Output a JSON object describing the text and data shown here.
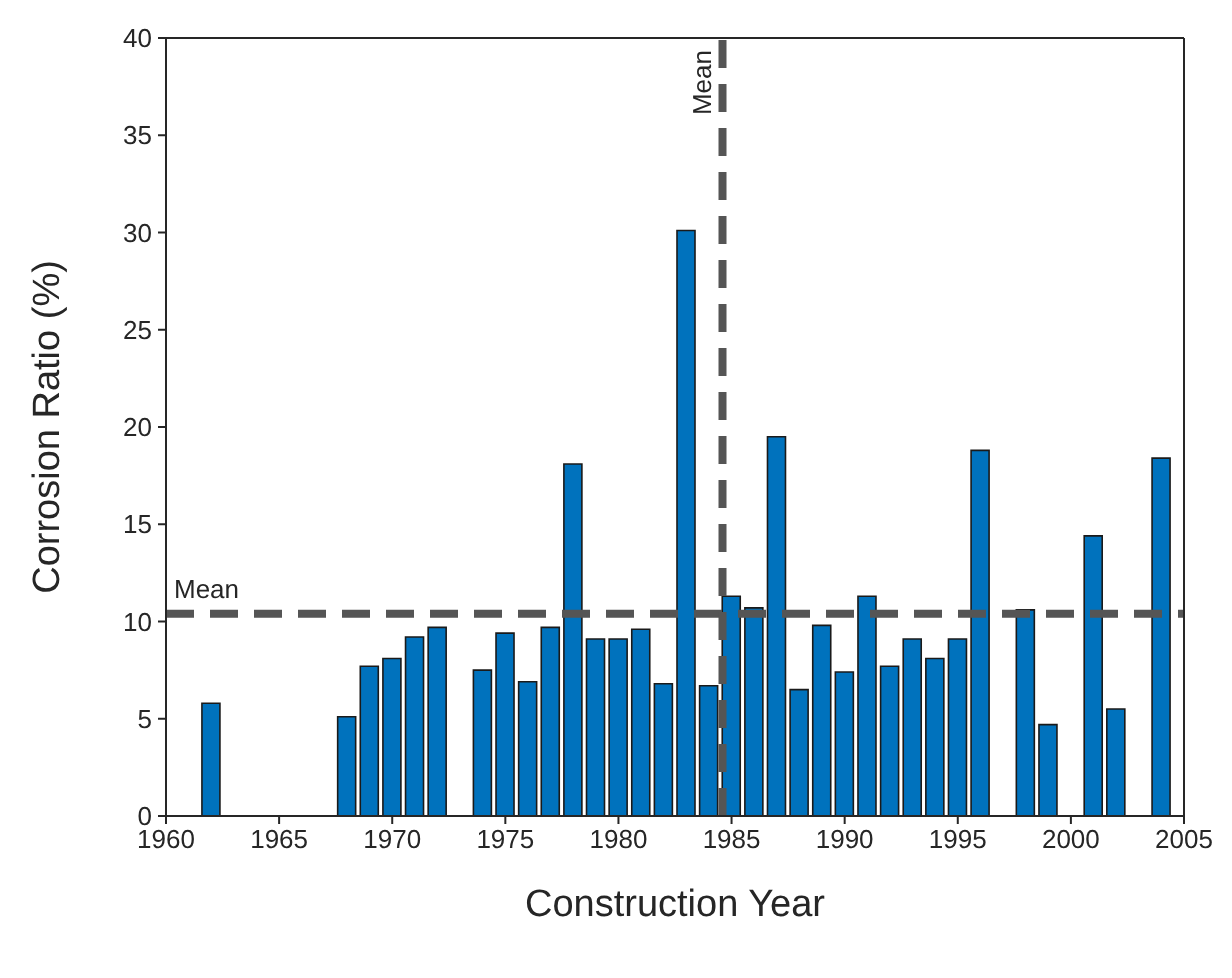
{
  "chart_data": {
    "type": "bar",
    "xlabel": "Construction Year",
    "ylabel": "Corrosion Ratio (%)",
    "x": [
      1962,
      1968,
      1969,
      1970,
      1971,
      1972,
      1974,
      1975,
      1976,
      1977,
      1978,
      1979,
      1980,
      1981,
      1982,
      1983,
      1984,
      1985,
      1986,
      1987,
      1988,
      1989,
      1990,
      1991,
      1992,
      1993,
      1994,
      1995,
      1996,
      1998,
      1999,
      2001,
      2002,
      2004
    ],
    "values": [
      5.8,
      5.1,
      7.7,
      8.1,
      9.2,
      9.7,
      7.5,
      9.4,
      6.9,
      9.7,
      18.1,
      9.1,
      9.1,
      9.6,
      6.8,
      30.1,
      6.7,
      11.3,
      10.7,
      19.5,
      6.5,
      9.8,
      7.4,
      11.3,
      7.7,
      9.1,
      8.1,
      9.1,
      18.8,
      10.6,
      4.7,
      14.4,
      5.5,
      18.4
    ],
    "color": "#0072bd",
    "xlim": [
      1960,
      2005
    ],
    "xticks": [
      1960,
      1965,
      1970,
      1975,
      1980,
      1985,
      1990,
      1995,
      2000,
      2005
    ],
    "ylim": [
      0,
      40
    ],
    "yticks": [
      0,
      5,
      10,
      15,
      20,
      25,
      30,
      35,
      40
    ],
    "grid": false,
    "legend": false,
    "ref_lines": [
      {
        "axis": "y",
        "value": 10.4,
        "label": "Mean",
        "color": "#555555",
        "line_style": "dashed"
      },
      {
        "axis": "x",
        "value": 1984.6,
        "label": "Mean",
        "color": "#555555",
        "line_style": "dashed"
      }
    ]
  }
}
